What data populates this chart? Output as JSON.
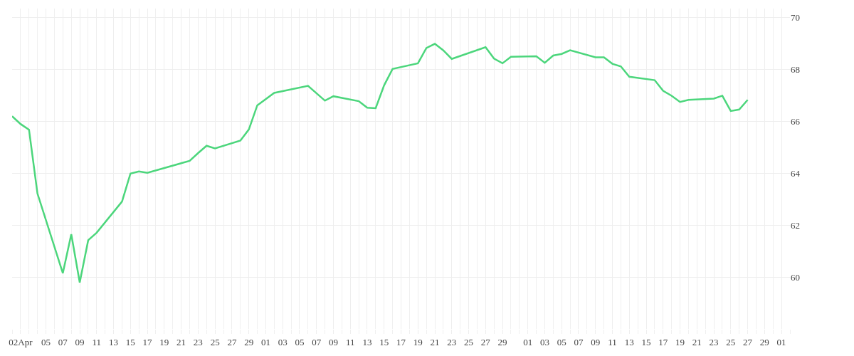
{
  "chart_data": {
    "type": "line",
    "x": [
      "--04-01",
      "--04-02",
      "--04-03",
      "--04-04",
      "--04-07",
      "--04-08",
      "--04-09",
      "--04-10",
      "--04-11",
      "--04-14",
      "--04-15",
      "--04-16",
      "--04-17",
      "--04-22",
      "--04-23",
      "--04-24",
      "--04-25",
      "--04-28",
      "--04-29",
      "--04-30",
      "--05-02",
      "--05-06",
      "--05-08",
      "--05-09",
      "--05-12",
      "--05-13",
      "--05-14",
      "--05-15",
      "--05-16",
      "--05-19",
      "--05-20",
      "--05-21",
      "--05-22",
      "--05-23",
      "--05-27",
      "--05-28",
      "--05-29",
      "--05-30",
      "--06-02",
      "--06-03",
      "--06-04",
      "--06-05",
      "--06-06",
      "--06-09",
      "--06-10",
      "--06-11",
      "--06-12",
      "--06-13",
      "--06-16",
      "--06-17",
      "--06-18",
      "--06-19",
      "--06-20",
      "--06-23",
      "--06-24",
      "--06-25",
      "--06-26",
      "--06-27"
    ],
    "series": [
      {
        "color": "#4cd67c",
        "values": [
          66.2,
          65.9,
          65.68,
          63.22,
          60.15,
          61.65,
          59.79,
          61.42,
          61.71,
          62.91,
          63.99,
          64.07,
          64.02,
          64.48,
          64.78,
          65.06,
          64.96,
          65.26,
          65.69,
          66.62,
          67.1,
          67.37,
          66.8,
          66.97,
          66.78,
          66.53,
          66.51,
          67.39,
          68.02,
          68.24,
          68.83,
          68.99,
          68.74,
          68.41,
          68.86,
          68.42,
          68.24,
          68.49,
          68.51,
          68.26,
          68.54,
          68.6,
          68.74,
          68.47,
          68.47,
          68.22,
          68.12,
          67.72,
          67.59,
          67.18,
          66.99,
          66.75,
          66.83,
          66.88,
          66.99,
          66.4,
          66.46,
          66.83
        ]
      }
    ],
    "xlim": [
      "--04-01",
      "--07-02"
    ],
    "xticks": [
      {
        "value": "--04-02",
        "label": "02Apr"
      },
      {
        "value": "--04-05",
        "label": "05"
      },
      {
        "value": "--04-07",
        "label": "07"
      },
      {
        "value": "--04-09",
        "label": "09"
      },
      {
        "value": "--04-11",
        "label": "11"
      },
      {
        "value": "--04-13",
        "label": "13"
      },
      {
        "value": "--04-15",
        "label": "15"
      },
      {
        "value": "--04-17",
        "label": "17"
      },
      {
        "value": "--04-19",
        "label": "19"
      },
      {
        "value": "--04-21",
        "label": "21"
      },
      {
        "value": "--04-23",
        "label": "23"
      },
      {
        "value": "--04-25",
        "label": "25"
      },
      {
        "value": "--04-27",
        "label": "27"
      },
      {
        "value": "--04-29",
        "label": "29"
      },
      {
        "value": "--05-01",
        "label": "01"
      },
      {
        "value": "--05-03",
        "label": "03"
      },
      {
        "value": "--05-05",
        "label": "05"
      },
      {
        "value": "--05-07",
        "label": "07"
      },
      {
        "value": "--05-09",
        "label": "09"
      },
      {
        "value": "--05-11",
        "label": "11"
      },
      {
        "value": "--05-13",
        "label": "13"
      },
      {
        "value": "--05-15",
        "label": "15"
      },
      {
        "value": "--05-17",
        "label": "17"
      },
      {
        "value": "--05-19",
        "label": "19"
      },
      {
        "value": "--05-21",
        "label": "21"
      },
      {
        "value": "--05-23",
        "label": "23"
      },
      {
        "value": "--05-25",
        "label": "25"
      },
      {
        "value": "--05-27",
        "label": "27"
      },
      {
        "value": "--05-29",
        "label": "29"
      },
      {
        "value": "--06-01",
        "label": "01"
      },
      {
        "value": "--06-03",
        "label": "03"
      },
      {
        "value": "--06-05",
        "label": "05"
      },
      {
        "value": "--06-07",
        "label": "07"
      },
      {
        "value": "--06-09",
        "label": "09"
      },
      {
        "value": "--06-11",
        "label": "11"
      },
      {
        "value": "--06-13",
        "label": "13"
      },
      {
        "value": "--06-15",
        "label": "15"
      },
      {
        "value": "--06-17",
        "label": "17"
      },
      {
        "value": "--06-19",
        "label": "19"
      },
      {
        "value": "--06-21",
        "label": "21"
      },
      {
        "value": "--06-23",
        "label": "23"
      },
      {
        "value": "--06-25",
        "label": "25"
      },
      {
        "value": "--06-27",
        "label": "27"
      },
      {
        "value": "--06-29",
        "label": "29"
      },
      {
        "value": "--07-01",
        "label": "01"
      }
    ],
    "ylim": [
      58,
      70.35
    ],
    "yticks": [
      60,
      62,
      64,
      66,
      68,
      70
    ],
    "grid": true,
    "marker": "none",
    "line_style": "solid"
  }
}
